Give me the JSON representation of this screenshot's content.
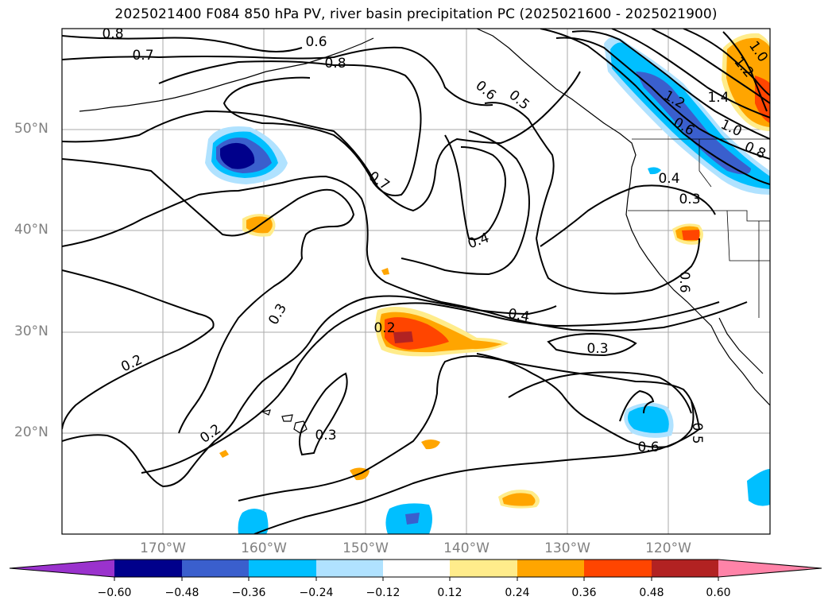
{
  "title": "2025021400 F084 850 hPa PV, river basin precipitation PC (2025021600 - 2025021900)",
  "lat_labels": [
    "50°N",
    "40°N",
    "30°N",
    "20°N"
  ],
  "lon_labels": [
    "170°W",
    "160°W",
    "150°W",
    "140°W",
    "130°W",
    "120°W"
  ],
  "colorbar": {
    "ticks": [
      "−0.60",
      "−0.48",
      "−0.36",
      "−0.24",
      "−0.12",
      "0.12",
      "0.24",
      "0.36",
      "0.48",
      "0.60"
    ],
    "colors": [
      "#9a32cd",
      "#00008b",
      "#3a5fcd",
      "#00bfff",
      "#b0e2ff",
      "#ffffff",
      "#ffec8b",
      "#ffa500",
      "#ff4500",
      "#b22222",
      "#ff83a8"
    ]
  },
  "contour_labels": [
    "0.8",
    "0.7",
    "0.6",
    "0.8",
    "0.6",
    "0.5",
    "0.7",
    "0.4",
    "0.3",
    "0.2",
    "0.2",
    "0.3",
    "0.2",
    "0.4",
    "0.3",
    "0.6",
    "0.5",
    "0.4",
    "0.3",
    "0.6",
    "1.0",
    "1.2",
    "1.4",
    "1.2",
    "1.0",
    "0.8",
    "0.6"
  ]
}
